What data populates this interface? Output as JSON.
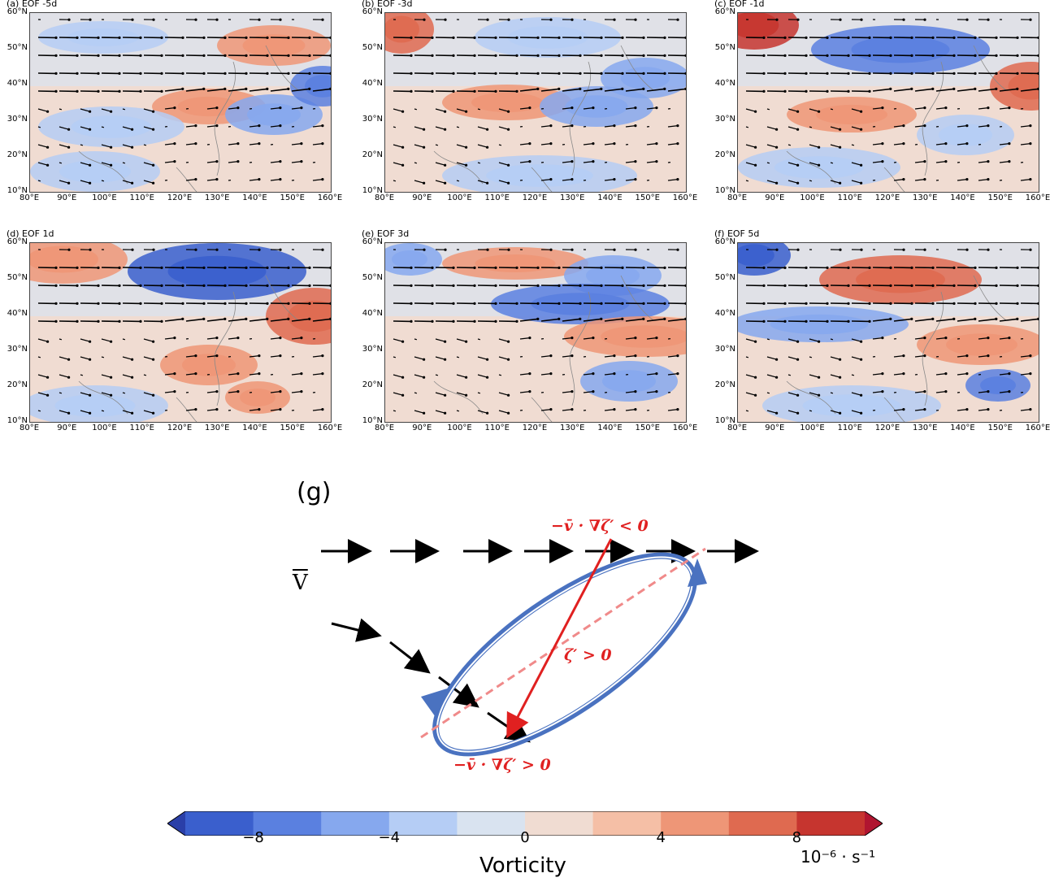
{
  "panels": [
    {
      "title": "(a) EOF -5d",
      "pattern": 0
    },
    {
      "title": "(b) EOF -3d",
      "pattern": 1
    },
    {
      "title": "(c) EOF -1d",
      "pattern": 2
    },
    {
      "title": "(d) EOF 1d",
      "pattern": 3
    },
    {
      "title": "(e) EOF 3d",
      "pattern": 4
    },
    {
      "title": "(f) EOF 5d",
      "pattern": 5
    }
  ],
  "lat_labels": [
    "60°N",
    "50°N",
    "40°N",
    "30°N",
    "20°N",
    "10°N"
  ],
  "lon_labels": [
    "80°E",
    "90°E",
    "100°E",
    "110°E",
    "120°E",
    "130°E",
    "140°E",
    "150°E",
    "160°E"
  ],
  "schematic": {
    "panel_label": "(g)",
    "mean_flow_label": "V",
    "eq_top": "−v̄ · ∇ζ′ < 0",
    "eq_center": "ζ′ > 0",
    "eq_bottom": "−v̄ · ∇ζ′ > 0"
  },
  "colorbar": {
    "ticks": [
      "−8",
      "−4",
      "0",
      "4",
      "8"
    ],
    "tick_values": [
      -8,
      -4,
      0,
      4,
      8
    ],
    "range": [
      -10,
      10
    ],
    "label": "Vorticity",
    "unit": "10⁻⁶ · s⁻¹",
    "colors": [
      "#3a5fcd",
      "#5a80e0",
      "#86a8ee",
      "#b5cdf5",
      "#d9e3f0",
      "#f0dcd2",
      "#f5bfa6",
      "#ee9677",
      "#df6a50",
      "#c6352f"
    ]
  }
}
